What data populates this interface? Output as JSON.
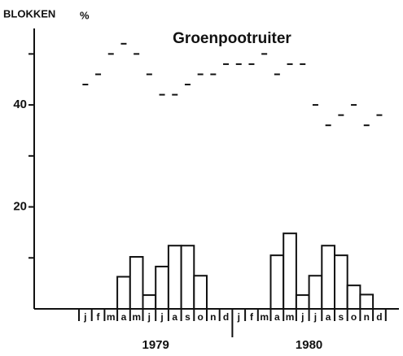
{
  "chart_data": {
    "type": "bar",
    "title": "Groenpootruiter",
    "ylabel": "BLOKKEN",
    "yunit": "%",
    "categories": [
      "j",
      "f",
      "m",
      "a",
      "m",
      "j",
      "j",
      "a",
      "s",
      "o",
      "n",
      "d",
      "j",
      "f",
      "m",
      "a",
      "m",
      "j",
      "j",
      "a",
      "s",
      "o",
      "n",
      "d"
    ],
    "groups": [
      "1979",
      "1980"
    ],
    "bar_values": [
      null,
      null,
      null,
      6.3,
      10.2,
      2.7,
      8.3,
      12.4,
      12.4,
      6.5,
      null,
      null,
      null,
      null,
      null,
      10.5,
      14.8,
      2.7,
      6.5,
      12.4,
      10.5,
      4.6,
      2.8,
      null
    ],
    "dash_values": [
      44,
      46,
      50,
      52,
      50,
      46,
      42,
      42,
      44,
      46,
      46,
      48,
      48,
      48,
      50,
      46,
      48,
      48,
      40,
      36,
      38,
      40,
      36,
      38
    ],
    "color": "#111111",
    "ylim": [
      0,
      55
    ],
    "yticks": [
      20,
      40
    ],
    "yminor": [
      10,
      30,
      50
    ]
  }
}
